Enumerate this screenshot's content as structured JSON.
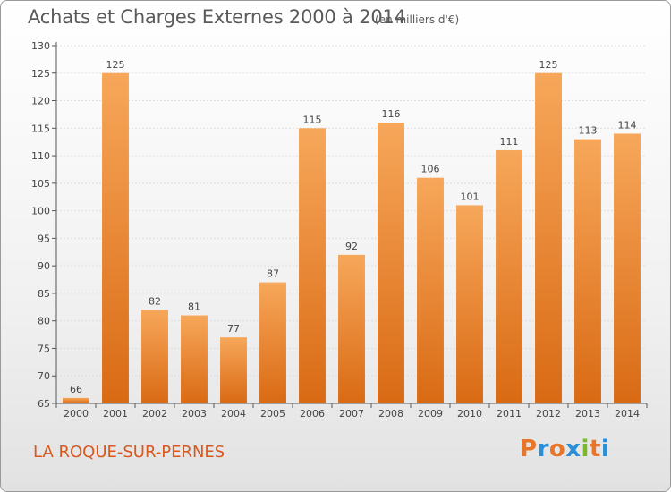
{
  "header": {
    "title": "Achats et Charges Externes 2000 à 2014",
    "unit": "(en milliers d'€)"
  },
  "footer": {
    "commune": "LA ROQUE-SUR-PERNES",
    "brand": {
      "letters": [
        "P",
        "r",
        "o",
        "x",
        "i",
        "t",
        "i"
      ],
      "colors": [
        "#e8752a",
        "#2a8fd6",
        "#e8752a",
        "#2a8fd6",
        "#7cb82f",
        "#e8752a",
        "#2a8fd6"
      ]
    }
  },
  "colors": {
    "bar_top": "#f7a75a",
    "bar_bottom": "#d96a14",
    "axis": "#555555",
    "grid": "#dddddd",
    "commune_text": "#d9581d"
  },
  "chart_data": {
    "type": "bar",
    "title": "Achats et Charges Externes 2000 à 2014",
    "xlabel": "",
    "ylabel": "",
    "categories": [
      "2000",
      "2001",
      "2002",
      "2003",
      "2004",
      "2005",
      "2006",
      "2007",
      "2008",
      "2009",
      "2010",
      "2011",
      "2012",
      "2013",
      "2014"
    ],
    "values": [
      66,
      125,
      82,
      81,
      77,
      87,
      115,
      92,
      116,
      106,
      101,
      111,
      125,
      113,
      114
    ],
    "ylim": [
      65,
      130
    ],
    "yticks": [
      65,
      70,
      75,
      80,
      85,
      90,
      95,
      100,
      105,
      110,
      115,
      120,
      125,
      130
    ],
    "grid": true,
    "data_labels": true
  }
}
